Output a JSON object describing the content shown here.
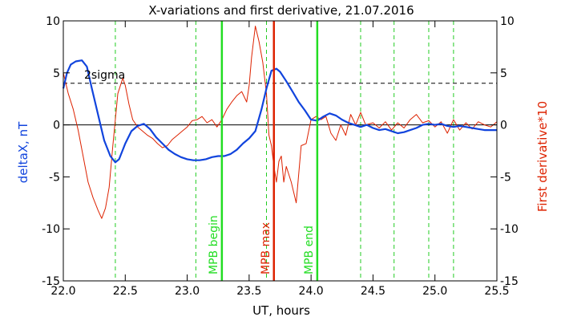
{
  "chart_data": {
    "type": "line",
    "title": "X-variations and first derivative, 21.07.2016",
    "xlabel": "UT, hours",
    "ylabel_left": "deltaX, nT",
    "ylabel_right": "First derivative*10",
    "xlim": [
      22.0,
      25.5
    ],
    "ylim": [
      -15,
      10
    ],
    "xticks": [
      "22.0",
      "22.5",
      "23.0",
      "23.5",
      "24.0",
      "24.5",
      "25.0",
      "25.5"
    ],
    "xtick_values": [
      22.0,
      22.5,
      23.0,
      23.5,
      24.0,
      24.5,
      25.0,
      25.5
    ],
    "yticks_left": [
      "-15",
      "-10",
      "-5",
      "0",
      "5",
      "10"
    ],
    "yticks_right": [
      "-15",
      "-10",
      "-5",
      "0",
      "5",
      "10"
    ],
    "ytick_values": [
      -15,
      -10,
      -5,
      0,
      5,
      10
    ],
    "threshold": {
      "label": "2sigma",
      "value": 4.0
    },
    "zero_line": 0,
    "dashed_verticals": [
      22.42,
      23.07,
      23.64,
      24.4,
      24.67,
      24.95,
      25.15
    ],
    "events": [
      {
        "label": "MPB begin",
        "x": 23.28,
        "color": "#22dd22"
      },
      {
        "label": "MPB max",
        "x": 23.7,
        "color": "#dd2200"
      },
      {
        "label": "MPB end",
        "x": 24.05,
        "color": "#22dd22"
      }
    ],
    "colors": {
      "deltaX": "#1144dd",
      "derivative": "#dd2200",
      "dashed_vertical": "#22cc22",
      "threshold": "#000000"
    },
    "series": [
      {
        "id": "deltaX",
        "x": [
          22.0,
          22.03,
          22.06,
          22.1,
          22.15,
          22.19,
          22.23,
          22.28,
          22.33,
          22.38,
          22.42,
          22.45,
          22.5,
          22.55,
          22.6,
          22.65,
          22.7,
          22.75,
          22.8,
          22.85,
          22.9,
          22.95,
          23.0,
          23.05,
          23.1,
          23.15,
          23.2,
          23.25,
          23.3,
          23.35,
          23.4,
          23.45,
          23.5,
          23.55,
          23.6,
          23.64,
          23.68,
          23.72,
          23.75,
          23.8,
          23.85,
          23.9,
          23.95,
          24.0,
          24.05,
          24.1,
          24.15,
          24.2,
          24.25,
          24.3,
          24.35,
          24.4,
          24.45,
          24.5,
          24.55,
          24.6,
          24.65,
          24.7,
          24.75,
          24.8,
          24.85,
          24.9,
          24.95,
          25.0,
          25.05,
          25.1,
          25.15,
          25.2,
          25.25,
          25.3,
          25.35,
          25.4,
          25.45,
          25.5
        ],
        "y": [
          3.5,
          5.0,
          5.8,
          6.1,
          6.2,
          5.6,
          3.5,
          1.0,
          -1.5,
          -3.0,
          -3.6,
          -3.3,
          -1.8,
          -0.6,
          -0.1,
          0.1,
          -0.4,
          -1.2,
          -1.8,
          -2.4,
          -2.8,
          -3.1,
          -3.3,
          -3.4,
          -3.4,
          -3.3,
          -3.1,
          -3.0,
          -3.0,
          -2.8,
          -2.4,
          -1.8,
          -1.3,
          -0.6,
          1.5,
          3.5,
          5.2,
          5.4,
          5.1,
          4.2,
          3.2,
          2.2,
          1.4,
          0.5,
          0.4,
          0.8,
          1.1,
          0.9,
          0.5,
          0.2,
          0.0,
          -0.2,
          0.0,
          -0.3,
          -0.5,
          -0.4,
          -0.6,
          -0.8,
          -0.7,
          -0.5,
          -0.3,
          0.0,
          0.1,
          0.0,
          0.1,
          -0.1,
          -0.2,
          -0.1,
          -0.2,
          -0.3,
          -0.4,
          -0.5,
          -0.5,
          -0.5
        ]
      },
      {
        "id": "derivative",
        "x": [
          22.0,
          22.04,
          22.08,
          22.12,
          22.16,
          22.2,
          22.24,
          22.28,
          22.31,
          22.34,
          22.37,
          22.4,
          22.44,
          22.48,
          22.5,
          22.53,
          22.56,
          22.6,
          22.64,
          22.68,
          22.72,
          22.76,
          22.8,
          22.84,
          22.88,
          22.92,
          22.96,
          23.0,
          23.04,
          23.08,
          23.12,
          23.16,
          23.2,
          23.24,
          23.28,
          23.32,
          23.36,
          23.4,
          23.44,
          23.48,
          23.5,
          23.52,
          23.55,
          23.58,
          23.61,
          23.64,
          23.66,
          23.68,
          23.7,
          23.72,
          23.74,
          23.76,
          23.78,
          23.8,
          23.84,
          23.88,
          23.92,
          23.96,
          24.0,
          24.04,
          24.08,
          24.12,
          24.16,
          24.2,
          24.24,
          24.28,
          24.32,
          24.36,
          24.4,
          24.44,
          24.5,
          24.55,
          24.6,
          24.65,
          24.7,
          24.75,
          24.8,
          24.85,
          24.9,
          24.95,
          25.0,
          25.05,
          25.1,
          25.15,
          25.2,
          25.25,
          25.3,
          25.35,
          25.4,
          25.45,
          25.5
        ],
        "y": [
          5.0,
          3.0,
          1.5,
          -0.5,
          -3.0,
          -5.5,
          -7.0,
          -8.2,
          -9.0,
          -8.0,
          -6.0,
          -2.0,
          3.0,
          4.5,
          3.8,
          2.0,
          0.5,
          -0.2,
          -0.6,
          -1.0,
          -1.3,
          -1.8,
          -2.2,
          -2.0,
          -1.4,
          -1.0,
          -0.6,
          -0.2,
          0.4,
          0.5,
          0.8,
          0.2,
          0.5,
          -0.2,
          0.5,
          1.5,
          2.2,
          2.8,
          3.2,
          2.2,
          3.8,
          6.5,
          9.5,
          8.0,
          6.0,
          3.0,
          -1.0,
          -2.0,
          -4.0,
          -5.5,
          -3.5,
          -3.0,
          -5.5,
          -4.0,
          -5.5,
          -7.5,
          -2.0,
          -1.8,
          0.5,
          0.8,
          0.5,
          0.8,
          -0.8,
          -1.5,
          0.0,
          -1.0,
          1.0,
          0.0,
          1.2,
          0.0,
          0.2,
          -0.3,
          0.3,
          -0.5,
          0.2,
          -0.3,
          0.5,
          1.0,
          0.2,
          0.4,
          -0.2,
          0.3,
          -0.8,
          0.5,
          -0.5,
          0.2,
          -0.4,
          0.3,
          0.0,
          -0.2,
          0.3
        ]
      }
    ]
  }
}
